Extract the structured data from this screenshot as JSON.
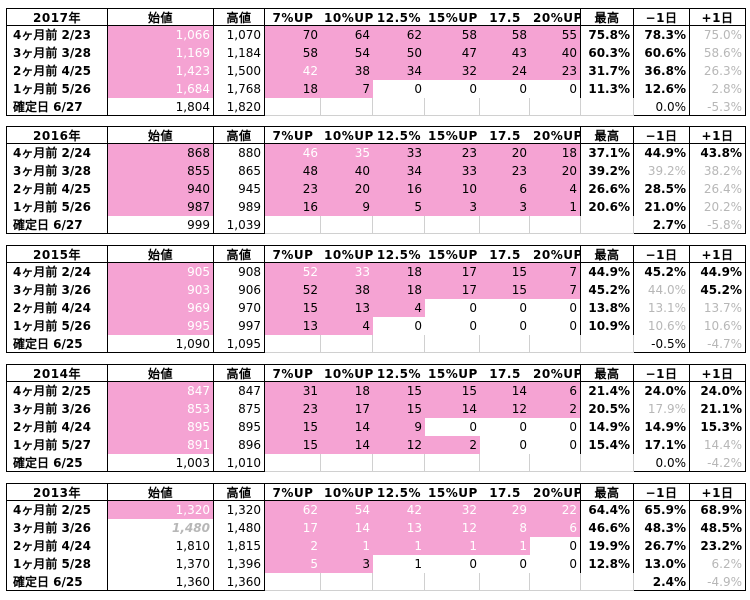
{
  "columns": [
    "年",
    "始値",
    "高値",
    "7%UP",
    "10%UP",
    "12.5%",
    "15%UP",
    "17.5",
    "20%UP",
    "最高",
    "−1日",
    "+1日"
  ],
  "colors": {
    "pink": "#f5a3d3",
    "muted": "#b7b7b7",
    "grid": "#d0d0d0"
  },
  "blocks": [
    {
      "year": "2017年",
      "rows": [
        {
          "label": "4ヶ月前  2/23",
          "start": "1,066",
          "high": "1,070",
          "up": [
            "70",
            "64",
            "62",
            "58",
            "58",
            "55"
          ],
          "max": "75.8%",
          "m1": "78.3%",
          "p1": "75.0%"
        },
        {
          "label": "3ヶ月前  3/28",
          "start": "1,169",
          "high": "1,184",
          "up": [
            "58",
            "54",
            "50",
            "47",
            "43",
            "40"
          ],
          "max": "60.3%",
          "m1": "60.6%",
          "p1": "58.6%"
        },
        {
          "label": "2ヶ月前  4/25",
          "start": "1,423",
          "high": "1,500",
          "up": [
            "42",
            "38",
            "34",
            "32",
            "24",
            "23"
          ],
          "max": "31.7%",
          "m1": "36.8%",
          "p1": "26.3%"
        },
        {
          "label": "1ヶ月前  5/26",
          "start": "1,684",
          "high": "1,768",
          "up": [
            "18",
            "7",
            "0",
            "0",
            "0",
            "0"
          ],
          "max": "11.3%",
          "m1": "12.6%",
          "p1": "2.8%"
        }
      ],
      "confirm": {
        "label": "確定日  6/27",
        "start": "1,804",
        "high": "1,820",
        "m1": "0.0%",
        "p1": "-5.3%"
      }
    },
    {
      "year": "2016年",
      "rows": [
        {
          "label": "4ヶ月前  2/24",
          "start": "868",
          "high": "880",
          "up": [
            "46",
            "35",
            "33",
            "23",
            "20",
            "18"
          ],
          "max": "37.1%",
          "m1": "44.9%",
          "p1": "43.8%"
        },
        {
          "label": "3ヶ月前  3/28",
          "start": "855",
          "high": "865",
          "up": [
            "48",
            "40",
            "34",
            "33",
            "23",
            "20"
          ],
          "max": "39.2%",
          "m1": "39.2%",
          "p1": "38.2%"
        },
        {
          "label": "2ヶ月前  4/25",
          "start": "940",
          "high": "945",
          "up": [
            "23",
            "20",
            "16",
            "10",
            "6",
            "4"
          ],
          "max": "26.6%",
          "m1": "28.5%",
          "p1": "26.4%"
        },
        {
          "label": "1ヶ月前  5/26",
          "start": "987",
          "high": "989",
          "up": [
            "16",
            "9",
            "5",
            "3",
            "3",
            "1"
          ],
          "max": "20.6%",
          "m1": "21.0%",
          "p1": "20.2%"
        }
      ],
      "confirm": {
        "label": "確定日  6/27",
        "start": "999",
        "high": "1,039",
        "m1": "2.7%",
        "p1": "-5.8%"
      }
    },
    {
      "year": "2015年",
      "rows": [
        {
          "label": "4ヶ月前  2/24",
          "start": "905",
          "high": "908",
          "up": [
            "52",
            "33",
            "18",
            "17",
            "15",
            "7"
          ],
          "max": "44.9%",
          "m1": "45.2%",
          "p1": "44.9%"
        },
        {
          "label": "3ヶ月前  3/26",
          "start": "903",
          "high": "906",
          "up": [
            "52",
            "38",
            "18",
            "17",
            "15",
            "7"
          ],
          "max": "45.2%",
          "m1": "44.0%",
          "p1": "45.2%"
        },
        {
          "label": "2ヶ月前  4/24",
          "start": "969",
          "high": "970",
          "up": [
            "15",
            "13",
            "4",
            "0",
            "0",
            "0"
          ],
          "max": "13.8%",
          "m1": "13.1%",
          "p1": "13.7%"
        },
        {
          "label": "1ヶ月前  5/26",
          "start": "995",
          "high": "997",
          "up": [
            "13",
            "4",
            "0",
            "0",
            "0",
            "0"
          ],
          "max": "10.9%",
          "m1": "10.6%",
          "p1": "10.6%"
        }
      ],
      "confirm": {
        "label": "確定日  6/25",
        "start": "1,090",
        "high": "1,095",
        "m1": "-0.5%",
        "p1": "-4.7%"
      }
    },
    {
      "year": "2014年",
      "rows": [
        {
          "label": "4ヶ月前  2/25",
          "start": "847",
          "high": "847",
          "up": [
            "31",
            "18",
            "15",
            "15",
            "14",
            "6"
          ],
          "max": "21.4%",
          "m1": "24.0%",
          "p1": "24.0%"
        },
        {
          "label": "3ヶ月前  3/26",
          "start": "853",
          "high": "875",
          "up": [
            "23",
            "17",
            "15",
            "14",
            "12",
            "2"
          ],
          "max": "20.5%",
          "m1": "17.9%",
          "p1": "21.1%"
        },
        {
          "label": "2ヶ月前  4/24",
          "start": "895",
          "high": "895",
          "up": [
            "15",
            "14",
            "9",
            "0",
            "0",
            "0"
          ],
          "max": "14.9%",
          "m1": "14.9%",
          "p1": "15.3%"
        },
        {
          "label": "1ヶ月前  5/27",
          "start": "891",
          "high": "896",
          "up": [
            "15",
            "14",
            "12",
            "2",
            "0",
            "0"
          ],
          "max": "15.4%",
          "m1": "17.1%",
          "p1": "14.4%"
        }
      ],
      "confirm": {
        "label": "確定日  6/25",
        "start": "1,003",
        "high": "1,010",
        "m1": "0.0%",
        "p1": "-4.2%"
      }
    },
    {
      "year": "2013年",
      "rows": [
        {
          "label": "4ヶ月前  2/25",
          "start": "1,320",
          "high": "1,320",
          "up": [
            "62",
            "54",
            "42",
            "32",
            "29",
            "22"
          ],
          "max": "64.4%",
          "m1": "65.9%",
          "p1": "68.9%"
        },
        {
          "label": "3ヶ月前  3/26",
          "start": "1,480",
          "high": "1,480",
          "up": [
            "17",
            "14",
            "13",
            "12",
            "8",
            "6"
          ],
          "max": "46.6%",
          "m1": "48.3%",
          "p1": "48.5%"
        },
        {
          "label": "2ヶ月前  4/24",
          "start": "1,810",
          "high": "1,815",
          "up": [
            "2",
            "1",
            "1",
            "1",
            "1",
            "0"
          ],
          "max": "19.9%",
          "m1": "26.7%",
          "p1": "23.2%"
        },
        {
          "label": "1ヶ月前  5/28",
          "start": "1,370",
          "high": "1,396",
          "up": [
            "5",
            "3",
            "1",
            "0",
            "0",
            "0"
          ],
          "max": "12.8%",
          "m1": "13.0%",
          "p1": "6.2%"
        }
      ],
      "confirm": {
        "label": "確定日  6/25",
        "start": "1,360",
        "high": "1,360",
        "m1": "2.4%",
        "p1": "-4.9%"
      }
    }
  ]
}
